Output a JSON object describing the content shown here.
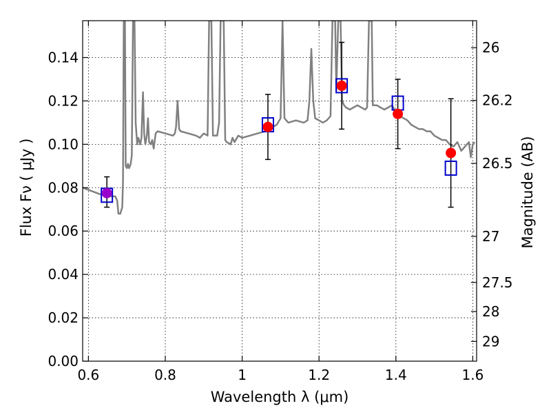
{
  "chart_data": {
    "type": "scatter",
    "title": "",
    "xlabel": "Wavelength  λ (μm)",
    "ylabel": "Flux  Fν  ( μJy )",
    "ylabel_right": "Magnitude (AB)",
    "xlim": [
      0.585,
      1.61
    ],
    "ylim": [
      0.0,
      0.157
    ],
    "grid": true,
    "x_ticks": [
      0.6,
      0.8,
      1.0,
      1.2,
      1.4,
      1.6
    ],
    "x_tick_labels": [
      "0.6",
      "0.8",
      "1",
      "1.2",
      "1.4",
      "1.6"
    ],
    "y_ticks": [
      0.0,
      0.02,
      0.04,
      0.06,
      0.08,
      0.1,
      0.12,
      0.14
    ],
    "y_tick_labels": [
      "0.00",
      "0.02",
      "0.04",
      "0.06",
      "0.08",
      "0.10",
      "0.12",
      "0.14"
    ],
    "right_ticks": [
      {
        "label": "26",
        "mag": 26.0
      },
      {
        "label": "26.2",
        "mag": 26.2
      },
      {
        "label": "26.5",
        "mag": 26.5
      },
      {
        "label": "27",
        "mag": 27.0
      },
      {
        "label": "27.5",
        "mag": 27.5
      },
      {
        "label": "28",
        "mag": 28.0
      },
      {
        "label": "29",
        "mag": 29.0
      }
    ],
    "model_spectrum": {
      "color": "#808080",
      "points": [
        [
          0.585,
          0.08
        ],
        [
          0.6,
          0.079
        ],
        [
          0.615,
          0.078
        ],
        [
          0.63,
          0.077
        ],
        [
          0.645,
          0.0765
        ],
        [
          0.66,
          0.076
        ],
        [
          0.67,
          0.076
        ],
        [
          0.675,
          0.074
        ],
        [
          0.678,
          0.068
        ],
        [
          0.683,
          0.068
        ],
        [
          0.688,
          0.071
        ],
        [
          0.69,
          0.083
        ],
        [
          0.692,
          0.157
        ],
        [
          0.695,
          0.157
        ],
        [
          0.697,
          0.09
        ],
        [
          0.7,
          0.089
        ],
        [
          0.703,
          0.091
        ],
        [
          0.706,
          0.089
        ],
        [
          0.71,
          0.091
        ],
        [
          0.713,
          0.095
        ],
        [
          0.716,
          0.157
        ],
        [
          0.72,
          0.157
        ],
        [
          0.723,
          0.11
        ],
        [
          0.727,
          0.1
        ],
        [
          0.73,
          0.103
        ],
        [
          0.735,
          0.1
        ],
        [
          0.738,
          0.103
        ],
        [
          0.742,
          0.124
        ],
        [
          0.745,
          0.105
        ],
        [
          0.748,
          0.1
        ],
        [
          0.752,
          0.104
        ],
        [
          0.755,
          0.112
        ],
        [
          0.758,
          0.101
        ],
        [
          0.762,
          0.1
        ],
        [
          0.766,
          0.102
        ],
        [
          0.77,
          0.098
        ],
        [
          0.775,
          0.105
        ],
        [
          0.78,
          0.106
        ],
        [
          0.8,
          0.105
        ],
        [
          0.82,
          0.104
        ],
        [
          0.825,
          0.105
        ],
        [
          0.828,
          0.108
        ],
        [
          0.832,
          0.12
        ],
        [
          0.836,
          0.107
        ],
        [
          0.84,
          0.106
        ],
        [
          0.86,
          0.105
        ],
        [
          0.88,
          0.104
        ],
        [
          0.89,
          0.103
        ],
        [
          0.9,
          0.105
        ],
        [
          0.91,
          0.104
        ],
        [
          0.914,
          0.157
        ],
        [
          0.92,
          0.157
        ],
        [
          0.924,
          0.104
        ],
        [
          0.935,
          0.104
        ],
        [
          0.94,
          0.11
        ],
        [
          0.944,
          0.157
        ],
        [
          0.952,
          0.157
        ],
        [
          0.956,
          0.102
        ],
        [
          0.96,
          0.101
        ],
        [
          0.97,
          0.1
        ],
        [
          0.975,
          0.103
        ],
        [
          0.98,
          0.101
        ],
        [
          0.99,
          0.104
        ],
        [
          1.0,
          0.103
        ],
        [
          1.02,
          0.104
        ],
        [
          1.04,
          0.105
        ],
        [
          1.06,
          0.106
        ],
        [
          1.07,
          0.107
        ],
        [
          1.08,
          0.108
        ],
        [
          1.09,
          0.109
        ],
        [
          1.1,
          0.112
        ],
        [
          1.105,
          0.157
        ],
        [
          1.11,
          0.112
        ],
        [
          1.12,
          0.11
        ],
        [
          1.14,
          0.111
        ],
        [
          1.16,
          0.11
        ],
        [
          1.17,
          0.111
        ],
        [
          1.175,
          0.12
        ],
        [
          1.18,
          0.144
        ],
        [
          1.185,
          0.12
        ],
        [
          1.19,
          0.112
        ],
        [
          1.2,
          0.111
        ],
        [
          1.21,
          0.11
        ],
        [
          1.22,
          0.111
        ],
        [
          1.23,
          0.113
        ],
        [
          1.235,
          0.157
        ],
        [
          1.242,
          0.157
        ],
        [
          1.245,
          0.125
        ],
        [
          1.25,
          0.157
        ],
        [
          1.256,
          0.157
        ],
        [
          1.26,
          0.12
        ],
        [
          1.265,
          0.118
        ],
        [
          1.27,
          0.117
        ],
        [
          1.28,
          0.116
        ],
        [
          1.29,
          0.117
        ],
        [
          1.3,
          0.118
        ],
        [
          1.31,
          0.117
        ],
        [
          1.32,
          0.116
        ],
        [
          1.325,
          0.117
        ],
        [
          1.33,
          0.157
        ],
        [
          1.337,
          0.157
        ],
        [
          1.34,
          0.118
        ],
        [
          1.35,
          0.118
        ],
        [
          1.36,
          0.117
        ],
        [
          1.37,
          0.116
        ],
        [
          1.38,
          0.117
        ],
        [
          1.39,
          0.118
        ],
        [
          1.4,
          0.115
        ],
        [
          1.41,
          0.113
        ],
        [
          1.42,
          0.112
        ],
        [
          1.43,
          0.111
        ],
        [
          1.44,
          0.109
        ],
        [
          1.45,
          0.108
        ],
        [
          1.46,
          0.107
        ],
        [
          1.47,
          0.107
        ],
        [
          1.48,
          0.106
        ],
        [
          1.49,
          0.106
        ],
        [
          1.5,
          0.104
        ],
        [
          1.51,
          0.103
        ],
        [
          1.52,
          0.102
        ],
        [
          1.53,
          0.102
        ],
        [
          1.54,
          0.1
        ],
        [
          1.55,
          0.099
        ],
        [
          1.56,
          0.101
        ],
        [
          1.57,
          0.097
        ],
        [
          1.58,
          0.099
        ],
        [
          1.59,
          0.101
        ],
        [
          1.595,
          0.094
        ],
        [
          1.6,
          0.1
        ],
        [
          1.605,
          0.101
        ]
      ]
    },
    "measurements": {
      "marker_color": "#ff0000",
      "errorbar_color": "#000000",
      "points": [
        {
          "x": 0.648,
          "y": 0.0775,
          "yerr_low": 0.0065,
          "yerr_high": 0.0075,
          "color": "#9900cc"
        },
        {
          "x": 1.067,
          "y": 0.108,
          "yerr_low": 0.015,
          "yerr_high": 0.015,
          "color": "#ff0000"
        },
        {
          "x": 1.259,
          "y": 0.127,
          "yerr_low": 0.02,
          "yerr_high": 0.02,
          "color": "#ff0000"
        },
        {
          "x": 1.405,
          "y": 0.114,
          "yerr_low": 0.016,
          "yerr_high": 0.016,
          "color": "#ff0000"
        },
        {
          "x": 1.543,
          "y": 0.096,
          "yerr_low": 0.025,
          "yerr_high": 0.025,
          "color": "#ff0000"
        }
      ]
    },
    "model_fluxes": {
      "marker": "open-square",
      "color": "#0000cc",
      "points": [
        {
          "x": 0.648,
          "y": 0.0765
        },
        {
          "x": 1.067,
          "y": 0.109
        },
        {
          "x": 1.259,
          "y": 0.127
        },
        {
          "x": 1.405,
          "y": 0.119
        },
        {
          "x": 1.543,
          "y": 0.089
        }
      ]
    }
  }
}
